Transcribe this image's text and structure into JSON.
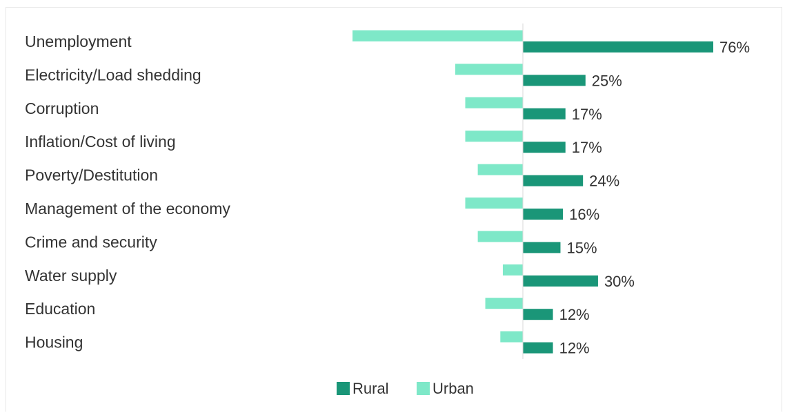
{
  "chart_data": {
    "type": "bar",
    "orientation": "horizontal-diverging",
    "categories": [
      "Unemployment",
      "Electricity/Load shedding",
      "Corruption",
      "Inflation/Cost of living",
      "Poverty/Destitution",
      "Management of the economy",
      "Crime and security",
      "Water supply",
      "Education",
      "Housing"
    ],
    "series": [
      {
        "name": "Rural",
        "color": "#1a9678",
        "values": [
          76,
          25,
          17,
          17,
          24,
          16,
          15,
          30,
          12,
          12
        ],
        "value_labels": [
          "76%",
          "25%",
          "17%",
          "17%",
          "24%",
          "16%",
          "15%",
          "30%",
          "12%",
          "12%"
        ],
        "direction": "right"
      },
      {
        "name": "Urban",
        "color": "#7ee8c8",
        "values": [
          68,
          27,
          23,
          23,
          18,
          23,
          18,
          8,
          15,
          9
        ],
        "direction": "left"
      }
    ],
    "legend_position": "bottom-center",
    "grid": false
  }
}
